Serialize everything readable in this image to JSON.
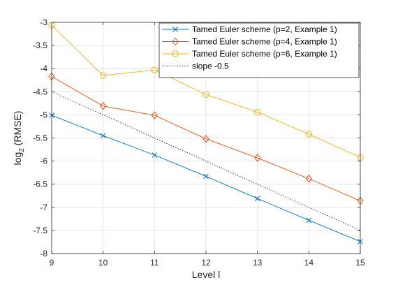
{
  "chart_data": {
    "type": "line",
    "title": "",
    "xlabel": "Level l",
    "ylabel_main": "log",
    "ylabel_sub": "2",
    "ylabel_rest": " (RMSE)",
    "xlim": [
      9,
      15
    ],
    "ylim": [
      -8,
      -3
    ],
    "xticks": [
      9,
      10,
      11,
      12,
      13,
      14,
      15
    ],
    "yticks": [
      -3,
      -3.5,
      -4,
      -4.5,
      -5,
      -5.5,
      -6,
      -6.5,
      -7,
      -7.5,
      -8
    ],
    "grid": true,
    "legend_position": "top-right",
    "x": [
      9,
      10,
      11,
      12,
      13,
      14,
      15
    ],
    "series": [
      {
        "name": "Tamed Euler scheme (p=2, Example 1)",
        "values": [
          -5.01,
          -5.45,
          -5.87,
          -6.33,
          -6.81,
          -7.28,
          -7.74
        ],
        "color": "#0072BD",
        "marker": "x",
        "style": "solid"
      },
      {
        "name": "Tamed Euler scheme (p=4, Example 1)",
        "values": [
          -4.17,
          -4.81,
          -5.01,
          -5.52,
          -5.93,
          -6.38,
          -6.86
        ],
        "color": "#D95319",
        "marker": "diamond",
        "style": "solid"
      },
      {
        "name": "Tamed Euler scheme (p=6, Example 1)",
        "values": [
          -3.06,
          -4.15,
          -4.03,
          -4.56,
          -4.94,
          -5.42,
          -5.92
        ],
        "color": "#EDB120",
        "marker": "circle",
        "style": "solid"
      },
      {
        "name": "slope -0.5",
        "values": [
          -4.5,
          -5.0,
          -5.5,
          -6.0,
          -6.5,
          -7.0,
          -7.5
        ],
        "color": "#000000",
        "marker": "none",
        "style": "dotted"
      }
    ]
  }
}
